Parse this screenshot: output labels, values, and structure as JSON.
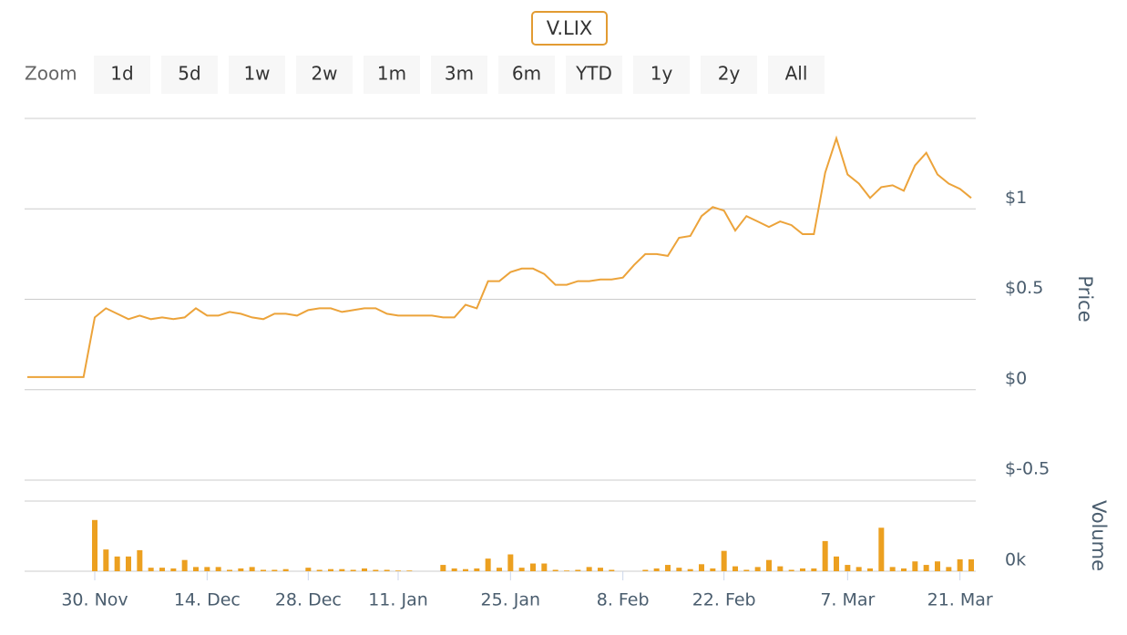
{
  "range_selector": {
    "label": "Zoom",
    "buttons": [
      "1d",
      "5d",
      "1w",
      "2w",
      "1m",
      "3m",
      "6m",
      "YTD",
      "1y",
      "2y",
      "All"
    ]
  },
  "chart_data": {
    "type": "stock",
    "title": "V.LIX",
    "y_label": "Price",
    "y2_label": "Volume",
    "categories": [
      null,
      null,
      null,
      null,
      null,
      null,
      "30. Nov",
      null,
      null,
      null,
      null,
      null,
      null,
      null,
      null,
      null,
      "14. Dec",
      null,
      null,
      null,
      null,
      null,
      null,
      null,
      null,
      "28. Dec",
      null,
      null,
      null,
      null,
      null,
      null,
      null,
      "11. Jan",
      null,
      null,
      null,
      null,
      null,
      null,
      null,
      null,
      null,
      "25. Jan",
      null,
      null,
      null,
      null,
      null,
      null,
      null,
      null,
      null,
      "8. Feb",
      null,
      null,
      null,
      null,
      null,
      null,
      null,
      null,
      "22. Feb",
      null,
      null,
      null,
      null,
      null,
      null,
      null,
      null,
      null,
      null,
      "7. Mar",
      null,
      null,
      null,
      null,
      null,
      null,
      null,
      null,
      null,
      "21. Mar",
      null
    ],
    "ylim": [
      -0.5,
      1.5
    ],
    "yticks": [
      {
        "value": -0.5,
        "label": "$-0.5"
      },
      {
        "value": 0,
        "label": "$0"
      },
      {
        "value": 0.5,
        "label": "$0.5"
      },
      {
        "value": 1,
        "label": "$1"
      }
    ],
    "y2lim": [
      0,
      100
    ],
    "y2ticks": [
      {
        "value": 0,
        "label": "0k"
      }
    ],
    "grid": true,
    "series": [
      {
        "type": "line",
        "color": "#eca33a",
        "values": [
          0.07,
          0.07,
          0.07,
          0.07,
          0.07,
          0.07,
          0.4,
          0.45,
          0.42,
          0.39,
          0.41,
          0.39,
          0.4,
          0.39,
          0.4,
          0.45,
          0.41,
          0.41,
          0.43,
          0.42,
          0.4,
          0.39,
          0.42,
          0.42,
          0.41,
          0.44,
          0.45,
          0.45,
          0.43,
          0.44,
          0.45,
          0.45,
          0.42,
          0.41,
          0.41,
          0.41,
          0.41,
          0.4,
          0.4,
          0.47,
          0.45,
          0.6,
          0.6,
          0.65,
          0.67,
          0.67,
          0.64,
          0.58,
          0.58,
          0.6,
          0.6,
          0.61,
          0.61,
          0.62,
          0.69,
          0.75,
          0.75,
          0.74,
          0.84,
          0.85,
          0.96,
          1.01,
          0.99,
          0.88,
          0.96,
          0.93,
          0.9,
          0.93,
          0.91,
          0.86,
          0.86,
          1.2,
          1.39,
          1.19,
          1.14,
          1.06,
          1.12,
          1.13,
          1.1,
          1.24,
          1.31,
          1.19,
          1.14,
          1.11,
          1.06
        ]
      },
      {
        "type": "bar",
        "axis": "y2",
        "color": "#eca020",
        "values": [
          0,
          0,
          0,
          0,
          0,
          0,
          73,
          31,
          21,
          21,
          30,
          5,
          5,
          4,
          16,
          6,
          6,
          6,
          2,
          4,
          6,
          2,
          2,
          3,
          0,
          5,
          2,
          3,
          3,
          2,
          4,
          2,
          2,
          1,
          1,
          0,
          0,
          9,
          4,
          3,
          4,
          18,
          5,
          24,
          5,
          11,
          11,
          2,
          1,
          2,
          6,
          5,
          2,
          0,
          0,
          2,
          4,
          9,
          5,
          3,
          10,
          4,
          29,
          7,
          2,
          6,
          16,
          7,
          2,
          4,
          4,
          43,
          21,
          9,
          6,
          4,
          62,
          6,
          4,
          14,
          9,
          14,
          6,
          17,
          17
        ]
      }
    ]
  }
}
